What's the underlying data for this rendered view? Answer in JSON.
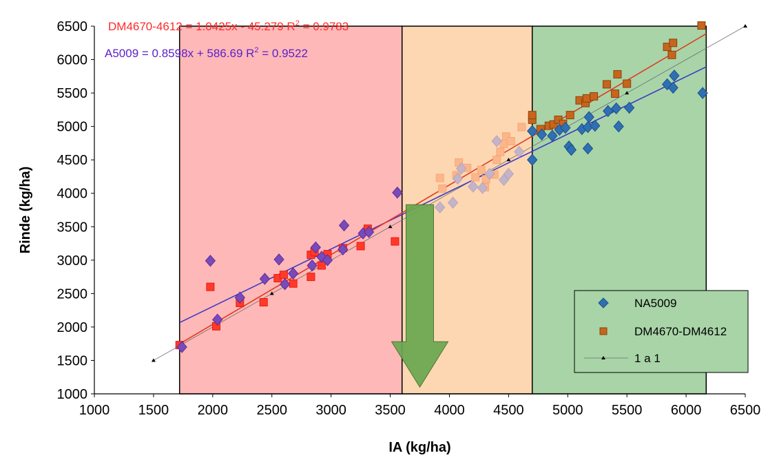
{
  "chart_data": {
    "type": "scatter",
    "xlabel": "IA (kg/ha)",
    "ylabel": "Rinde (kg/ha)",
    "xlim": [
      1000,
      6500
    ],
    "ylim": [
      1000,
      6500
    ],
    "x_ticks": [
      "1000",
      "1500",
      "2000",
      "2500",
      "3000",
      "3500",
      "4000",
      "4500",
      "5000",
      "5500",
      "6000",
      "6500"
    ],
    "y_ticks": [
      "1000",
      "1500",
      "2000",
      "2500",
      "3000",
      "3500",
      "4000",
      "4500",
      "5000",
      "5500",
      "6000",
      "6500"
    ],
    "grid": false,
    "legend_position": "bottom-right",
    "zones": [
      {
        "x_from": 1720,
        "x_to": 3600,
        "color": "#ffb8b8"
      },
      {
        "x_from": 3600,
        "x_to": 4700,
        "color": "#fdd7b2"
      },
      {
        "x_from": 4700,
        "x_to": 6170,
        "color": "#a8d4a8"
      }
    ],
    "arrow": {
      "x": 3750,
      "y_from": 3830,
      "y_to": 1100,
      "color": "#6aa84f"
    },
    "annotations": [
      {
        "text": "DM4670-4612 = 1.0425x - 45.279 R",
        "sup": "2",
        "tail": " = 0.9783",
        "color": "#ff2a2a"
      },
      {
        "text": "A5009 = 0.8598x + 586.69 R",
        "sup": "2",
        "tail": " = 0.9522",
        "color": "#5b21c8"
      }
    ],
    "series": [
      {
        "name": "NA5009",
        "marker": "diamond",
        "color": "#2f70b4",
        "x": [
          1740,
          1980,
          2040,
          2230,
          2440,
          2560,
          2610,
          2680,
          2840,
          2870,
          2920,
          2970,
          3110,
          3100,
          3270,
          3320,
          3560,
          3920,
          4030,
          4070,
          4100,
          4200,
          4280,
          4340,
          4400,
          4460,
          4500,
          4590,
          4700,
          4700,
          4780,
          4870,
          4930,
          4980,
          5010,
          5030,
          5120,
          5170,
          5170,
          5180,
          5230,
          5340,
          5410,
          5430,
          5520,
          5840,
          5890,
          5900,
          6140
        ],
        "y": [
          1700,
          2990,
          2110,
          2440,
          2720,
          3010,
          2640,
          2800,
          2920,
          3190,
          3050,
          3000,
          3520,
          3160,
          3400,
          3420,
          4010,
          3790,
          3860,
          4220,
          4370,
          4100,
          4080,
          4290,
          4780,
          4200,
          4290,
          4620,
          4500,
          4930,
          4880,
          4860,
          4950,
          4980,
          4700,
          4650,
          4960,
          4670,
          4990,
          5140,
          5010,
          5230,
          5270,
          5000,
          5280,
          5630,
          5580,
          5760,
          5500
        ]
      },
      {
        "name": "DM4670-DM4612",
        "marker": "square",
        "color": "#d2691e",
        "x": [
          1720,
          1980,
          2030,
          2230,
          2430,
          2550,
          2600,
          2680,
          2830,
          2830,
          2860,
          2920,
          2970,
          3100,
          3250,
          3310,
          3540,
          3920,
          3940,
          4060,
          4080,
          4150,
          4220,
          4270,
          4300,
          4310,
          4380,
          4400,
          4430,
          4460,
          4480,
          4520,
          4610,
          4700,
          4700,
          4770,
          4840,
          4880,
          4920,
          4960,
          5020,
          5100,
          5150,
          5160,
          5220,
          5330,
          5400,
          5420,
          5500,
          5840,
          5880,
          5890,
          6130
        ],
        "y": [
          1730,
          2600,
          2010,
          2360,
          2370,
          2730,
          2780,
          2650,
          2750,
          3080,
          3120,
          2920,
          3090,
          3180,
          3210,
          3470,
          3280,
          4230,
          4070,
          4270,
          4460,
          4380,
          4240,
          4350,
          4090,
          4210,
          4280,
          4500,
          4620,
          4740,
          4850,
          4780,
          4990,
          5100,
          5170,
          4960,
          5010,
          5030,
          5100,
          5040,
          5170,
          5390,
          5350,
          5420,
          5450,
          5630,
          5490,
          5780,
          5640,
          6190,
          6070,
          6250,
          6510
        ]
      },
      {
        "name": "1 a 1",
        "marker": "triangle-line",
        "color": "#000000",
        "x": [
          1500,
          2500,
          3500,
          4500,
          5500,
          6500
        ],
        "y": [
          1500,
          2500,
          3500,
          4500,
          5500,
          6500
        ]
      }
    ],
    "trendlines": [
      {
        "series": "NA5009",
        "slope": 0.8598,
        "intercept": 586.69,
        "x_from": 1720,
        "x_to": 6170,
        "color": "#3a3ac8"
      },
      {
        "series": "DM4670-DM4612",
        "slope": 1.0425,
        "intercept": -45.279,
        "x_from": 1720,
        "x_to": 6170,
        "color": "#e03a1e"
      }
    ]
  }
}
